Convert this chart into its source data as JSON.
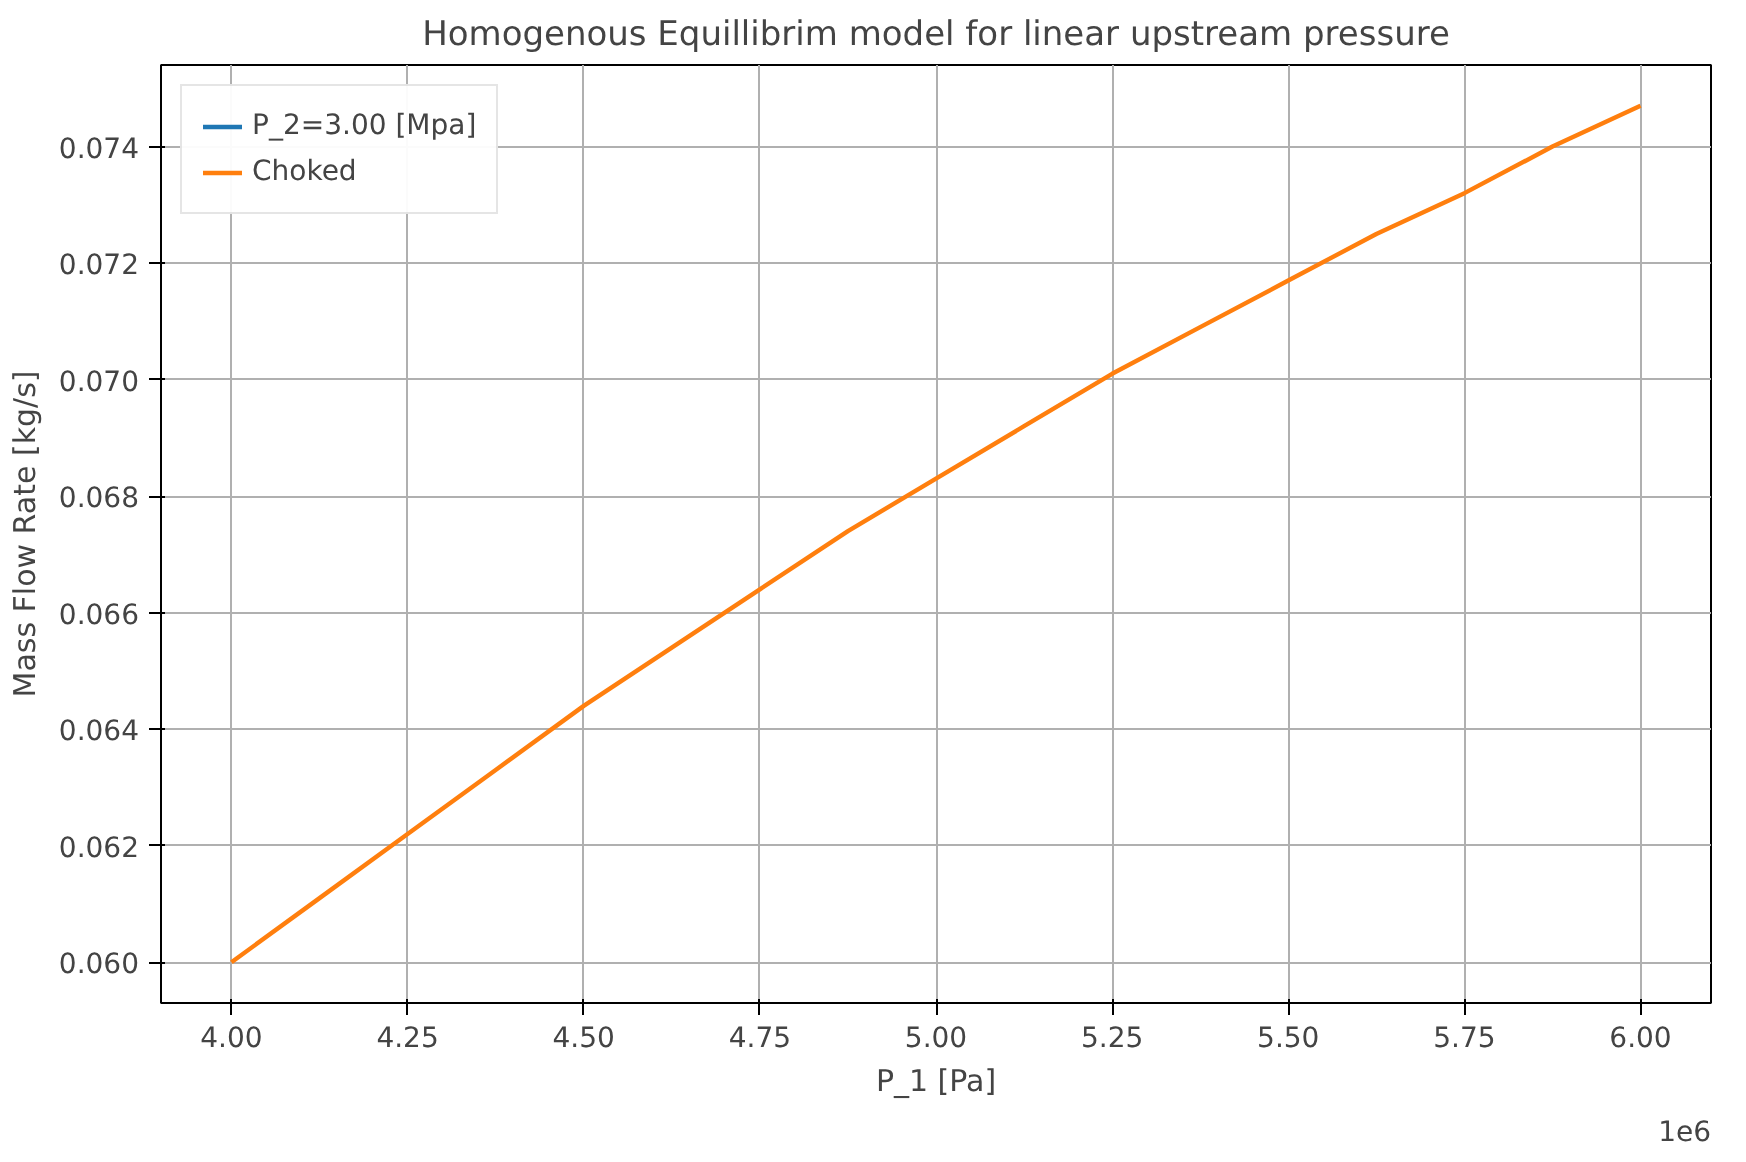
{
  "chart_data": {
    "type": "line",
    "title": "Homogenous Equillibrim model for linear upstream pressure",
    "xlabel": "P_1 [Pa]",
    "ylabel": "Mass Flow Rate [kg/s]",
    "x": [
      4.0,
      4.125,
      4.25,
      4.375,
      4.5,
      4.625,
      4.75,
      4.875,
      5.0,
      5.125,
      5.25,
      5.375,
      5.5,
      5.625,
      5.75,
      5.875,
      6.0
    ],
    "series": [
      {
        "name": "P_2=3.00 [Mpa]",
        "color": "#1f77b4",
        "values": [
          null,
          null,
          null,
          null,
          null,
          null,
          null,
          null,
          null,
          null,
          null,
          null,
          null,
          null,
          null,
          null,
          null
        ]
      },
      {
        "name": "Choked",
        "color": "#ff7f0e",
        "values": [
          0.06,
          0.0611,
          0.0622,
          0.0633,
          0.0644,
          0.0654,
          0.0664,
          0.0674,
          0.0683,
          0.0692,
          0.0701,
          0.0709,
          0.0717,
          0.0725,
          0.0732,
          0.074,
          0.0747
        ]
      }
    ],
    "xlim": [
      3.9,
      6.1
    ],
    "ylim": [
      0.0593,
      0.0754
    ],
    "xticks": [
      {
        "value": 4.0,
        "label": "4.00"
      },
      {
        "value": 4.25,
        "label": "4.25"
      },
      {
        "value": 4.5,
        "label": "4.50"
      },
      {
        "value": 4.75,
        "label": "4.75"
      },
      {
        "value": 5.0,
        "label": "5.00"
      },
      {
        "value": 5.25,
        "label": "5.25"
      },
      {
        "value": 5.5,
        "label": "5.50"
      },
      {
        "value": 5.75,
        "label": "5.75"
      },
      {
        "value": 6.0,
        "label": "6.00"
      }
    ],
    "yticks": [
      {
        "value": 0.06,
        "label": "0.060"
      },
      {
        "value": 0.062,
        "label": "0.062"
      },
      {
        "value": 0.064,
        "label": "0.064"
      },
      {
        "value": 0.066,
        "label": "0.066"
      },
      {
        "value": 0.068,
        "label": "0.068"
      },
      {
        "value": 0.07,
        "label": "0.070"
      },
      {
        "value": 0.072,
        "label": "0.072"
      },
      {
        "value": 0.074,
        "label": "0.074"
      }
    ],
    "annotations": [
      "1e6"
    ],
    "grid": true,
    "legend": "top left",
    "line_style": "solid"
  }
}
